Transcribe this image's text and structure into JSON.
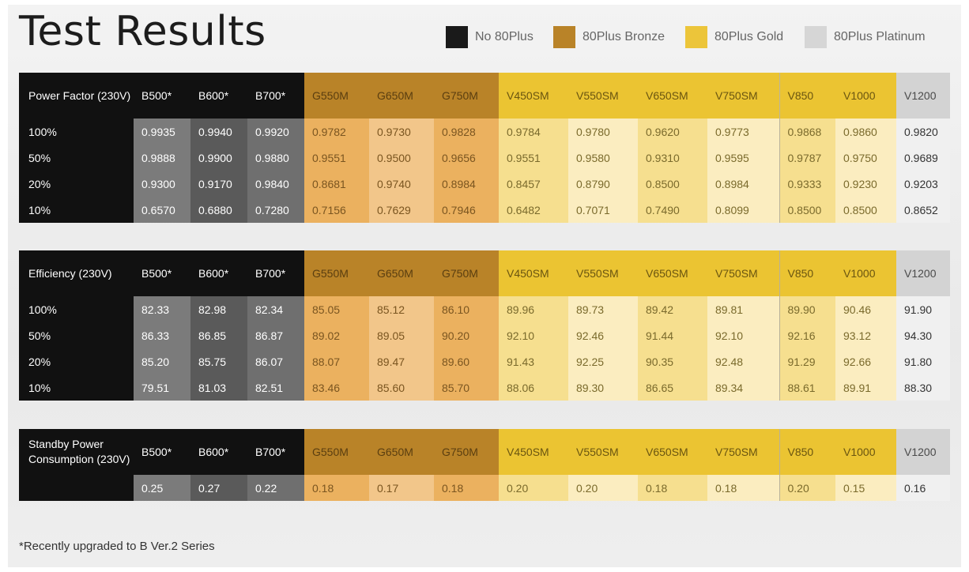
{
  "title": "Test Results",
  "legend": [
    {
      "label": "No 80Plus",
      "color": "#1a1a1a"
    },
    {
      "label": "80Plus Bronze",
      "color": "#b98328"
    },
    {
      "label": "80Plus Gold",
      "color": "#ecc53a"
    },
    {
      "label": "80Plus Platinum",
      "color": "#d6d6d6"
    }
  ],
  "models": [
    "B500*",
    "B600*",
    "B700*",
    "G550M",
    "G650M",
    "G750M",
    "V450SM",
    "V550SM",
    "V650SM",
    "V750SM",
    "V850",
    "V1000",
    "V1200"
  ],
  "tiers": [
    "none",
    "none",
    "none",
    "bronze",
    "bronze",
    "bronze",
    "gold",
    "gold",
    "gold",
    "gold",
    "gold",
    "gold",
    "platinum"
  ],
  "chart_data": [
    {
      "type": "table",
      "title": "Power Factor (230V)",
      "columns": [
        "B500*",
        "B600*",
        "B700*",
        "G550M",
        "G650M",
        "G750M",
        "V450SM",
        "V550SM",
        "V650SM",
        "V750SM",
        "V850",
        "V1000",
        "V1200"
      ],
      "rows": [
        {
          "label": "100%",
          "values": [
            "0.9935",
            "0.9940",
            "0.9920",
            "0.9782",
            "0.9730",
            "0.9828",
            "0.9784",
            "0.9780",
            "0.9620",
            "0.9773",
            "0.9868",
            "0.9860",
            "0.9820"
          ]
        },
        {
          "label": "50%",
          "values": [
            "0.9888",
            "0.9900",
            "0.9880",
            "0.9551",
            "0.9500",
            "0.9656",
            "0.9551",
            "0.9580",
            "0.9310",
            "0.9595",
            "0.9787",
            "0.9750",
            "0.9689"
          ]
        },
        {
          "label": "20%",
          "values": [
            "0.9300",
            "0.9170",
            "0.9840",
            "0.8681",
            "0.9740",
            "0.8984",
            "0.8457",
            "0.8790",
            "0.8500",
            "0.8984",
            "0.9333",
            "0.9230",
            "0.9203"
          ]
        },
        {
          "label": "10%",
          "values": [
            "0.6570",
            "0.6880",
            "0.7280",
            "0.7156",
            "0.7629",
            "0.7946",
            "0.6482",
            "0.7071",
            "0.7490",
            "0.8099",
            "0.8500",
            "0.8500",
            "0.8652"
          ]
        }
      ]
    },
    {
      "type": "table",
      "title": "Efficiency (230V)",
      "columns": [
        "B500*",
        "B600*",
        "B700*",
        "G550M",
        "G650M",
        "G750M",
        "V450SM",
        "V550SM",
        "V650SM",
        "V750SM",
        "V850",
        "V1000",
        "V1200"
      ],
      "rows": [
        {
          "label": "100%",
          "values": [
            "82.33",
            "82.98",
            "82.34",
            "85.05",
            "85.12",
            "86.10",
            "89.96",
            "89.73",
            "89.42",
            "89.81",
            "89.90",
            "90.46",
            "91.90"
          ]
        },
        {
          "label": "50%",
          "values": [
            "86.33",
            "86.85",
            "86.87",
            "89.02",
            "89.05",
            "90.20",
            "92.10",
            "92.46",
            "91.44",
            "92.10",
            "92.16",
            "93.12",
            "94.30"
          ]
        },
        {
          "label": "20%",
          "values": [
            "85.20",
            "85.75",
            "86.07",
            "88.07",
            "89.47",
            "89.60",
            "91.43",
            "92.25",
            "90.35",
            "92.48",
            "91.29",
            "92.66",
            "91.80"
          ]
        },
        {
          "label": "10%",
          "values": [
            "79.51",
            "81.03",
            "82.51",
            "83.46",
            "85.60",
            "85.70",
            "88.06",
            "89.30",
            "86.65",
            "89.34",
            "88.61",
            "89.91",
            "88.30"
          ]
        }
      ]
    },
    {
      "type": "table",
      "title": "Standby Power Consumption (230V)",
      "columns": [
        "B500*",
        "B600*",
        "B700*",
        "G550M",
        "G650M",
        "G750M",
        "V450SM",
        "V550SM",
        "V650SM",
        "V750SM",
        "V850",
        "V1000",
        "V1200"
      ],
      "rows": [
        {
          "label": "",
          "values": [
            "0.25",
            "0.27",
            "0.22",
            "0.18",
            "0.17",
            "0.18",
            "0.20",
            "0.20",
            "0.18",
            "0.18",
            "0.20",
            "0.15",
            "0.16"
          ]
        }
      ]
    }
  ],
  "footnote": "*Recently upgraded to B Ver.2 Series"
}
